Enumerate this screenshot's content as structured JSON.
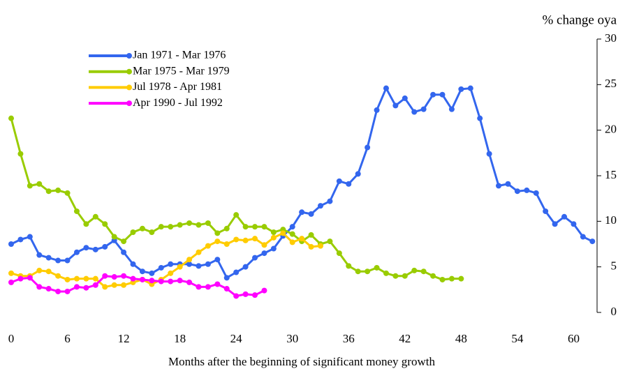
{
  "chart_data": {
    "type": "line",
    "y_axis_label": "% change oya",
    "x_axis_label": "Months after the beginning of significant money growth",
    "xlim": [
      0,
      62.5
    ],
    "xticks": [
      0,
      6,
      12,
      18,
      24,
      30,
      36,
      42,
      48,
      54,
      60
    ],
    "ylim": [
      0,
      30
    ],
    "yticks": [
      0,
      5,
      10,
      15,
      20,
      25,
      30
    ],
    "y_axis_side": "right",
    "legend_position": "upper left",
    "grid": false,
    "series": [
      {
        "name": "Jan 1971 - Mar 1976",
        "color": "#3366ee",
        "x": [
          0,
          1,
          2,
          3,
          4,
          5,
          6,
          7,
          8,
          9,
          10,
          11,
          12,
          13,
          14,
          15,
          16,
          17,
          18,
          19,
          20,
          21,
          22,
          23,
          24,
          25,
          26,
          27,
          28,
          29,
          30,
          31,
          32,
          33,
          34,
          35,
          36,
          37,
          38,
          39,
          40,
          41,
          42,
          43,
          44,
          45,
          46,
          47,
          48,
          49,
          50,
          51,
          52,
          53,
          54,
          55,
          56,
          57,
          58,
          59,
          60,
          61,
          62
        ],
        "values": [
          7.5,
          8.0,
          8.3,
          6.3,
          6.0,
          5.7,
          5.7,
          6.6,
          7.1,
          6.9,
          7.2,
          7.9,
          6.6,
          5.3,
          4.5,
          4.3,
          4.9,
          5.3,
          5.3,
          5.3,
          5.1,
          5.3,
          5.8,
          3.8,
          4.4,
          5.0,
          6.0,
          6.5,
          7.0,
          8.4,
          9.4,
          11.0,
          10.8,
          11.7,
          12.2,
          14.4,
          14.1,
          15.2,
          18.1,
          22.2,
          24.6,
          22.7,
          23.5,
          22.0,
          22.3,
          23.9,
          23.9,
          22.3,
          24.5,
          24.6,
          21.3,
          17.4,
          13.9,
          14.1,
          13.3,
          13.4,
          13.1,
          11.1,
          9.7,
          10.5,
          9.7,
          8.3,
          7.8
        ]
      },
      {
        "name": "Mar 1975 - Mar 1979",
        "color": "#99cc00",
        "x": [
          0,
          1,
          2,
          3,
          4,
          5,
          6,
          7,
          8,
          9,
          10,
          11,
          12,
          13,
          14,
          15,
          16,
          17,
          18,
          19,
          20,
          21,
          22,
          23,
          24,
          25,
          26,
          27,
          28,
          29,
          30,
          31,
          32,
          33,
          34,
          35,
          36,
          37,
          38,
          39,
          40,
          41,
          42,
          43,
          44,
          45,
          46,
          47,
          48
        ],
        "values": [
          21.3,
          17.4,
          13.9,
          14.1,
          13.3,
          13.4,
          13.1,
          11.1,
          9.7,
          10.5,
          9.7,
          8.3,
          7.8,
          8.8,
          9.2,
          8.8,
          9.4,
          9.4,
          9.6,
          9.8,
          9.6,
          9.8,
          8.7,
          9.2,
          10.7,
          9.4,
          9.4,
          9.4,
          8.8,
          9.1,
          8.6,
          7.8,
          8.5,
          7.5,
          7.8,
          6.5,
          5.1,
          4.5,
          4.5,
          4.9,
          4.3,
          4.0,
          4.0,
          4.6,
          4.5,
          4.0,
          3.6,
          3.7,
          3.7
        ]
      },
      {
        "name": "Jul 1978 - Apr 1981",
        "color": "#ffcc00",
        "x": [
          0,
          1,
          2,
          3,
          4,
          5,
          6,
          7,
          8,
          9,
          10,
          11,
          12,
          13,
          14,
          15,
          16,
          17,
          18,
          19,
          20,
          21,
          22,
          23,
          24,
          25,
          26,
          27,
          28,
          29,
          30,
          31,
          32,
          33
        ],
        "values": [
          4.3,
          4.0,
          4.0,
          4.6,
          4.5,
          4.0,
          3.6,
          3.7,
          3.7,
          3.7,
          2.8,
          3.0,
          3.0,
          3.3,
          3.6,
          3.1,
          3.6,
          4.3,
          5.0,
          5.8,
          6.6,
          7.3,
          7.8,
          7.5,
          8.0,
          7.9,
          8.1,
          7.4,
          8.2,
          8.7,
          7.7,
          8.1,
          7.2,
          7.3
        ]
      },
      {
        "name": "Apr 1990 - Jul 1992",
        "color": "#ff00ff",
        "x": [
          0,
          1,
          2,
          3,
          4,
          5,
          6,
          7,
          8,
          9,
          10,
          11,
          12,
          13,
          14,
          15,
          16,
          17,
          18,
          19,
          20,
          21,
          22,
          23,
          24,
          25,
          26,
          27
        ],
        "values": [
          3.3,
          3.7,
          3.8,
          2.8,
          2.6,
          2.3,
          2.3,
          2.8,
          2.7,
          3.0,
          4.0,
          3.9,
          4.0,
          3.7,
          3.6,
          3.5,
          3.4,
          3.4,
          3.5,
          3.3,
          2.8,
          2.8,
          3.1,
          2.6,
          1.8,
          2.0,
          1.9,
          2.4
        ]
      }
    ]
  }
}
